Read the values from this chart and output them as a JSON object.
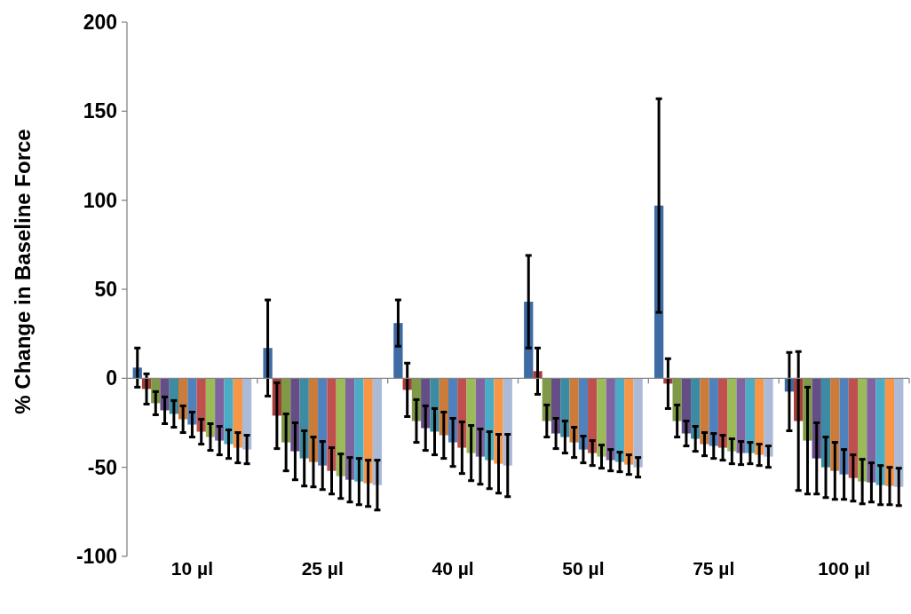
{
  "chart_data": {
    "type": "bar",
    "ylabel": "% Change in Baseline Force",
    "categories": [
      "10 µl",
      "25 µl",
      "40 µl",
      "50 µl",
      "75 µl",
      "100 µl"
    ],
    "ylim": [
      -100,
      200
    ],
    "yticks": [
      -100,
      -50,
      0,
      50,
      100,
      150,
      200
    ],
    "series": [
      {
        "color": "#3e6ba4",
        "values": [
          6,
          17,
          31,
          43,
          97,
          -7.5
        ],
        "errors": [
          11,
          27,
          13,
          26,
          60,
          22
        ]
      },
      {
        "color": "#a53d3a",
        "values": [
          -6,
          -21,
          -6.5,
          4,
          -3,
          -24
        ],
        "errors": [
          8.5,
          18.5,
          15,
          13,
          14,
          39
        ]
      },
      {
        "color": "#7e9a46",
        "values": [
          -14,
          -36,
          -24,
          -24,
          -24,
          -35
        ],
        "errors": [
          6.5,
          16,
          12,
          9,
          9,
          30
        ]
      },
      {
        "color": "#654d85",
        "values": [
          -18,
          -41,
          -28,
          -31,
          -31,
          -45
        ],
        "errors": [
          7.5,
          16,
          12.5,
          8.5,
          7,
          20
        ]
      },
      {
        "color": "#3c8ba2",
        "values": [
          -20,
          -45,
          -30,
          -33,
          -34,
          -50
        ],
        "errors": [
          7.5,
          15.5,
          13,
          9,
          7,
          17
        ]
      },
      {
        "color": "#cc7b38",
        "values": [
          -23,
          -47,
          -32,
          -36,
          -37,
          -52
        ],
        "errors": [
          7.5,
          14,
          13,
          8.5,
          6.5,
          16
        ]
      },
      {
        "color": "#4f81bd",
        "values": [
          -26,
          -49,
          -36,
          -40,
          -38,
          -54
        ],
        "errors": [
          7,
          13.5,
          13.5,
          7.5,
          7,
          14
        ]
      },
      {
        "color": "#c0504d",
        "values": [
          -30,
          -52,
          -39,
          -42,
          -39,
          -56
        ],
        "errors": [
          7,
          13,
          14.5,
          7,
          7,
          13
        ]
      },
      {
        "color": "#9bbb59",
        "values": [
          -33,
          -55,
          -42,
          -44,
          -41,
          -58
        ],
        "errors": [
          7.5,
          12.5,
          15.5,
          6.5,
          7,
          12.5
        ]
      },
      {
        "color": "#8064a2",
        "values": [
          -35,
          -57,
          -44,
          -46,
          -42,
          -58.5
        ],
        "errors": [
          8,
          12.5,
          15.5,
          6,
          6.5,
          11
        ]
      },
      {
        "color": "#4bacc6",
        "values": [
          -37,
          -58,
          -46,
          -47,
          -42,
          -60
        ],
        "errors": [
          8,
          13,
          16,
          5.5,
          6,
          11
        ]
      },
      {
        "color": "#f79646",
        "values": [
          -39,
          -59,
          -48,
          -48.5,
          -43,
          -60.5
        ],
        "errors": [
          8.5,
          13,
          16.5,
          5.5,
          6,
          10.5
        ]
      },
      {
        "color": "#aabad7",
        "values": [
          -40,
          -60,
          -49,
          -50,
          -44,
          -61
        ],
        "errors": [
          8,
          14,
          17.5,
          5.5,
          6,
          10.5
        ]
      }
    ]
  }
}
